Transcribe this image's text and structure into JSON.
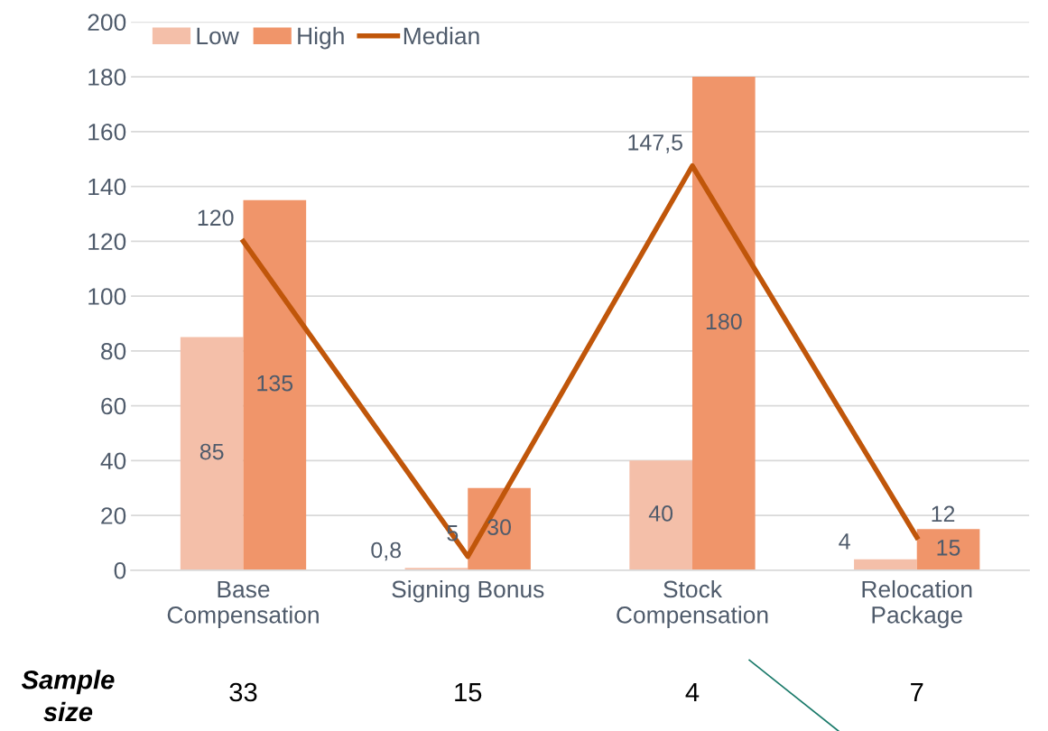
{
  "chart_data": {
    "type": "bar",
    "categories": [
      "Base\nCompensation",
      "Signing Bonus",
      "Stock\nCompensation",
      "Relocation\nPackage"
    ],
    "series": [
      {
        "name": "Low",
        "color": "#f4bfa9",
        "values": [
          85,
          0.8,
          40,
          4
        ],
        "value_labels": [
          "85",
          "0,8",
          "40",
          "4"
        ]
      },
      {
        "name": "High",
        "color": "#f0956a",
        "values": [
          135,
          30,
          180,
          15
        ],
        "value_labels": [
          "135",
          "30",
          "180",
          "15"
        ]
      },
      {
        "name": "Median",
        "type": "line",
        "color": "#c0560a",
        "values": [
          120,
          5,
          147.5,
          12
        ],
        "value_labels": [
          "120",
          "5",
          "147,5",
          "12"
        ]
      }
    ],
    "ylim": [
      0,
      200
    ],
    "yticks": [
      0,
      20,
      40,
      60,
      80,
      100,
      120,
      140,
      160,
      180,
      200
    ],
    "grid": "y",
    "legend": "top left",
    "marker": "none",
    "line_style": "solid",
    "annotations": [
      "Sample\nsize",
      "33",
      "15",
      "4",
      "7"
    ]
  }
}
